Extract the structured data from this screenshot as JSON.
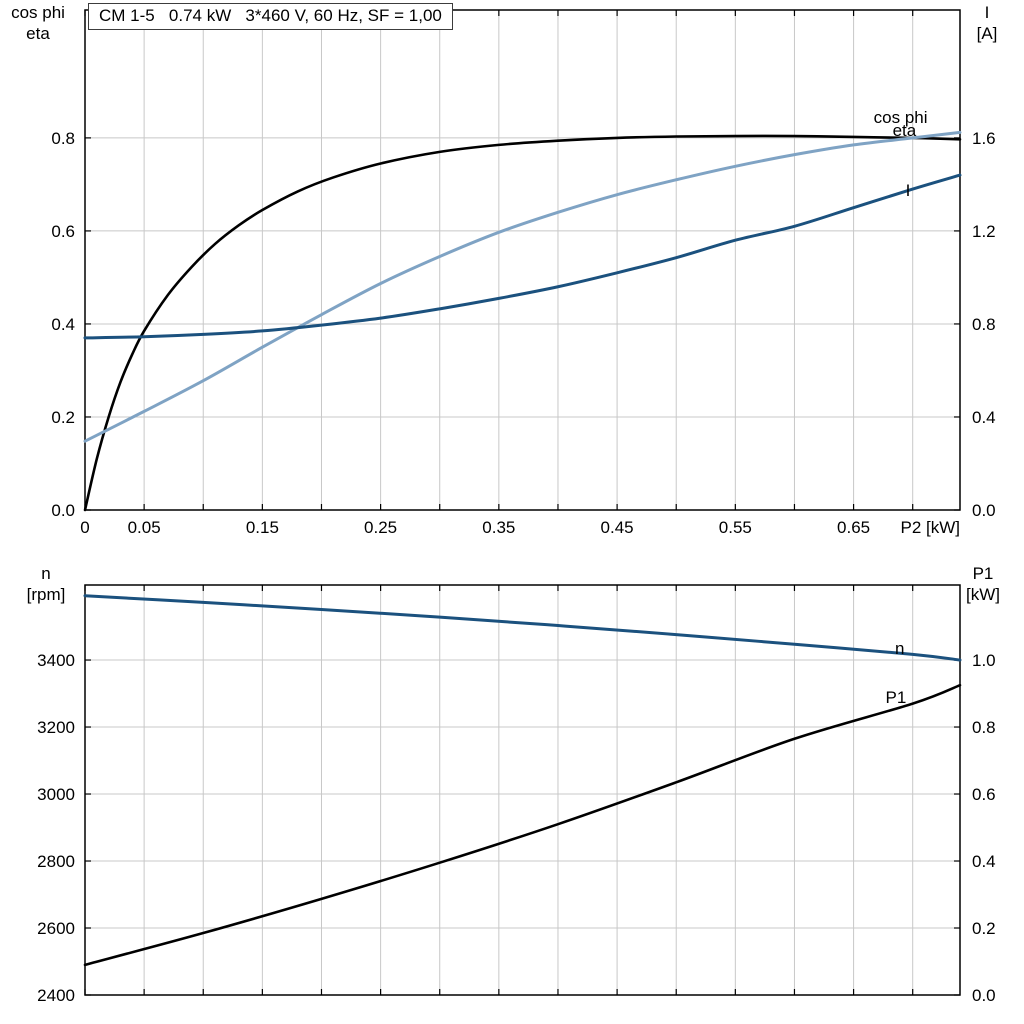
{
  "chart_data": [
    {
      "type": "line",
      "title": "CM 1-5   0.74 kW   3*460 V, 60 Hz, SF = 1,00",
      "xlabel": "P2 [kW]",
      "ylabel_left_lines": [
        "cos phi",
        "eta"
      ],
      "ylabel_right_lines": [
        "I",
        "[A]"
      ],
      "xlim": [
        0,
        0.74
      ],
      "ylim_left": [
        0,
        1.075
      ],
      "ylim_right": [
        0,
        2.15
      ],
      "x_tick_vals": [
        0,
        0.05,
        0.15,
        0.25,
        0.35,
        0.45,
        0.55,
        0.65
      ],
      "x_tick_labels": [
        "0",
        "0.05",
        "0.15",
        "0.25",
        "0.35",
        "0.45",
        "0.55",
        "0.65"
      ],
      "x_grid": [
        0.05,
        0.1,
        0.15,
        0.2,
        0.25,
        0.3,
        0.35,
        0.4,
        0.45,
        0.5,
        0.55,
        0.6,
        0.65,
        0.7
      ],
      "y_left_tick_vals": [
        0,
        0.2,
        0.4,
        0.6,
        0.8
      ],
      "y_left_tick_labels": [
        "0.0",
        "0.2",
        "0.4",
        "0.6",
        "0.8"
      ],
      "y_right_tick_vals": [
        0,
        0.4,
        0.8,
        1.2,
        1.6
      ],
      "y_right_tick_labels": [
        "0.0",
        "0.4",
        "0.8",
        "1.2",
        "1.6"
      ],
      "y_grid": [
        0.2,
        0.4,
        0.6,
        0.8
      ],
      "grid_color": "#c8c8c8",
      "grid_on": true,
      "legend_position": "inline-labels",
      "series": [
        {
          "name": "eta",
          "axis": "left",
          "color": "#000000",
          "width": 2.6,
          "x": [
            0,
            0.01,
            0.02,
            0.03,
            0.04,
            0.05,
            0.07,
            0.09,
            0.11,
            0.13,
            0.15,
            0.18,
            0.21,
            0.25,
            0.3,
            0.35,
            0.4,
            0.45,
            0.5,
            0.55,
            0.6,
            0.65,
            0.7,
            0.74
          ],
          "y": [
            0,
            0.11,
            0.2,
            0.275,
            0.335,
            0.385,
            0.462,
            0.522,
            0.572,
            0.612,
            0.645,
            0.685,
            0.715,
            0.745,
            0.77,
            0.785,
            0.794,
            0.8,
            0.803,
            0.804,
            0.804,
            0.802,
            0.8,
            0.797
          ],
          "label_at": [
            0.683,
            0.817
          ]
        },
        {
          "name": "cos phi",
          "axis": "left",
          "color": "#7fa3c4",
          "width": 3,
          "x": [
            0,
            0.05,
            0.1,
            0.15,
            0.2,
            0.25,
            0.3,
            0.35,
            0.4,
            0.45,
            0.5,
            0.55,
            0.6,
            0.65,
            0.7,
            0.74
          ],
          "y": [
            0.148,
            0.212,
            0.278,
            0.35,
            0.42,
            0.487,
            0.545,
            0.597,
            0.64,
            0.678,
            0.71,
            0.739,
            0.764,
            0.785,
            0.8,
            0.812
          ],
          "label_at": [
            0.667,
            0.845
          ]
        },
        {
          "name": "I",
          "axis": "right",
          "color": "#1b517e",
          "width": 3,
          "x": [
            0,
            0.05,
            0.1,
            0.15,
            0.2,
            0.25,
            0.3,
            0.35,
            0.4,
            0.45,
            0.5,
            0.55,
            0.6,
            0.65,
            0.7,
            0.74
          ],
          "y": [
            0.74,
            0.745,
            0.755,
            0.77,
            0.795,
            0.825,
            0.865,
            0.91,
            0.96,
            1.02,
            1.085,
            1.16,
            1.22,
            1.3,
            1.38,
            1.44
          ],
          "label_at": [
            0.694,
            1.376
          ]
        }
      ]
    },
    {
      "type": "line",
      "title": "",
      "xlabel": "",
      "ylabel_left_lines": [
        "n",
        "[rpm]"
      ],
      "ylabel_right_lines": [
        "P1",
        "[kW]"
      ],
      "xlim": [
        0,
        0.74
      ],
      "ylim_left": [
        2400,
        3624
      ],
      "ylim_right": [
        0,
        1.224
      ],
      "x_tick_vals": [],
      "x_tick_labels": [],
      "x_grid": [
        0.05,
        0.1,
        0.15,
        0.2,
        0.25,
        0.3,
        0.35,
        0.4,
        0.45,
        0.5,
        0.55,
        0.6,
        0.65,
        0.7
      ],
      "y_left_tick_vals": [
        2400,
        2600,
        2800,
        3000,
        3200,
        3400
      ],
      "y_left_tick_labels": [
        "2400",
        "2600",
        "2800",
        "3000",
        "3200",
        "3400"
      ],
      "y_right_tick_vals": [
        0,
        0.2,
        0.4,
        0.6,
        0.8,
        1.0
      ],
      "y_right_tick_labels": [
        "0.0",
        "0.2",
        "0.4",
        "0.6",
        "0.8",
        "1.0"
      ],
      "y_grid": [
        2600,
        2800,
        3000,
        3200,
        3400
      ],
      "grid_color": "#c8c8c8",
      "grid_on": true,
      "legend_position": "inline-labels",
      "series": [
        {
          "name": "n",
          "axis": "left",
          "color": "#1b517e",
          "width": 3,
          "x": [
            0,
            0.1,
            0.2,
            0.3,
            0.4,
            0.5,
            0.6,
            0.7,
            0.74
          ],
          "y": [
            3592,
            3572,
            3551,
            3528,
            3503,
            3476,
            3447,
            3417,
            3400
          ],
          "label_at": [
            0.685,
            3436
          ]
        },
        {
          "name": "P1",
          "axis": "right",
          "color": "#000000",
          "width": 2.6,
          "x": [
            0,
            0.1,
            0.2,
            0.3,
            0.4,
            0.5,
            0.6,
            0.7,
            0.74
          ],
          "y": [
            0.09,
            0.185,
            0.287,
            0.395,
            0.51,
            0.635,
            0.765,
            0.87,
            0.925
          ],
          "label_at": [
            0.677,
            0.89
          ]
        }
      ]
    }
  ]
}
